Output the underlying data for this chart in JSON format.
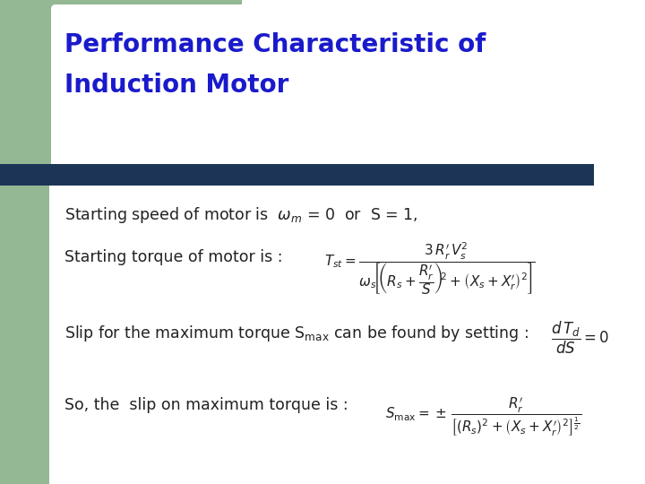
{
  "title_line1": "Performance Characteristic of",
  "title_line2": "Induction Motor",
  "title_color": "#1A1ACC",
  "title_fontsize": 20,
  "bg_color": "#FFFFFF",
  "left_bar_color": "#93B893",
  "divider_color": "#1C3557",
  "text_color": "#222222",
  "body_fontsize": 12.5
}
